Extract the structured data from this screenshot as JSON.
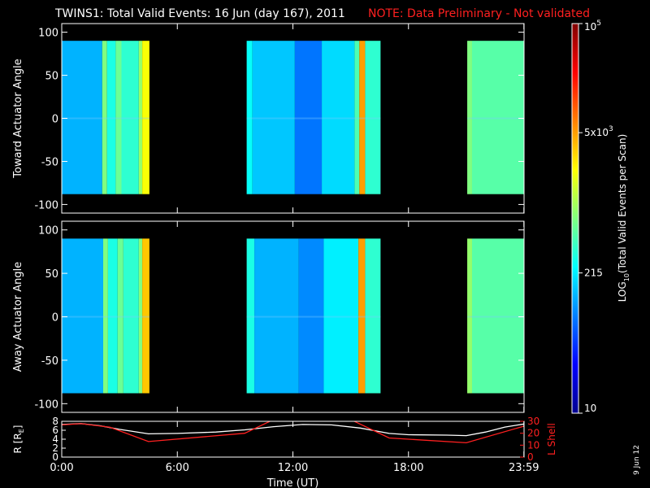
{
  "title": {
    "main": "TWINS1: Total Valid Events: 16 Jun (day 167), 2011",
    "note": "NOTE: Data Preliminary - Not validated",
    "note_color": "#ff2020"
  },
  "stamp": "9 Jun 12",
  "chart_data": [
    {
      "type": "heatmap",
      "ylabel": "Toward Actuator Angle",
      "ylim": [
        -110,
        110
      ],
      "yticks": [
        "100",
        "50",
        "0",
        "-50",
        "-100"
      ],
      "ytick_values": [
        100,
        50,
        0,
        -50,
        -100
      ],
      "angle_range": [
        -88,
        90
      ],
      "blocks": [
        {
          "t_start": 0.0,
          "t_end": 4.55,
          "stripes": [
            {
              "t": 0.0,
              "w": 2.1,
              "level": 0.3
            },
            {
              "t": 2.1,
              "w": 0.25,
              "level": 0.5
            },
            {
              "t": 2.35,
              "w": 0.45,
              "level": 0.4
            },
            {
              "t": 2.8,
              "w": 0.3,
              "level": 0.48
            },
            {
              "t": 3.1,
              "w": 0.9,
              "level": 0.42
            },
            {
              "t": 4.0,
              "w": 0.18,
              "level": 0.52
            },
            {
              "t": 4.18,
              "w": 0.37,
              "level": 0.62
            }
          ]
        },
        {
          "t_start": 9.6,
          "t_end": 16.55,
          "stripes": [
            {
              "t": 9.6,
              "w": 0.3,
              "level": 0.38
            },
            {
              "t": 9.9,
              "w": 2.2,
              "level": 0.32
            },
            {
              "t": 12.1,
              "w": 1.4,
              "level": 0.24
            },
            {
              "t": 13.5,
              "w": 1.7,
              "level": 0.34
            },
            {
              "t": 15.2,
              "w": 0.25,
              "level": 0.45
            },
            {
              "t": 15.45,
              "w": 0.3,
              "level": 0.72
            },
            {
              "t": 15.75,
              "w": 0.8,
              "level": 0.42
            }
          ]
        },
        {
          "t_start": 21.05,
          "t_end": 23.99,
          "stripes": [
            {
              "t": 21.05,
              "w": 0.25,
              "level": 0.5
            },
            {
              "t": 21.3,
              "w": 2.69,
              "level": 0.46
            }
          ]
        }
      ]
    },
    {
      "type": "heatmap",
      "ylabel": "Away Actuator Angle",
      "ylim": [
        -110,
        110
      ],
      "yticks": [
        "100",
        "50",
        "0",
        "-50",
        "-100"
      ],
      "ytick_values": [
        100,
        50,
        0,
        -50,
        -100
      ],
      "angle_range": [
        -88,
        90
      ],
      "blocks": [
        {
          "t_start": 0.0,
          "t_end": 4.55,
          "stripes": [
            {
              "t": 0.0,
              "w": 2.15,
              "level": 0.3
            },
            {
              "t": 2.15,
              "w": 0.25,
              "level": 0.5
            },
            {
              "t": 2.4,
              "w": 0.5,
              "level": 0.4
            },
            {
              "t": 2.9,
              "w": 0.3,
              "level": 0.48
            },
            {
              "t": 3.2,
              "w": 0.8,
              "level": 0.42
            },
            {
              "t": 4.0,
              "w": 0.18,
              "level": 0.5
            },
            {
              "t": 4.18,
              "w": 0.37,
              "level": 0.68
            }
          ]
        },
        {
          "t_start": 9.6,
          "t_end": 16.55,
          "stripes": [
            {
              "t": 9.6,
              "w": 0.4,
              "level": 0.4
            },
            {
              "t": 10.0,
              "w": 2.3,
              "level": 0.3
            },
            {
              "t": 12.3,
              "w": 1.3,
              "level": 0.26
            },
            {
              "t": 13.6,
              "w": 1.8,
              "level": 0.36
            },
            {
              "t": 15.4,
              "w": 0.35,
              "level": 0.72
            },
            {
              "t": 15.75,
              "w": 0.8,
              "level": 0.42
            }
          ]
        },
        {
          "t_start": 21.05,
          "t_end": 23.99,
          "stripes": [
            {
              "t": 21.05,
              "w": 0.25,
              "level": 0.52
            },
            {
              "t": 21.3,
              "w": 2.69,
              "level": 0.46
            }
          ]
        }
      ]
    },
    {
      "type": "line",
      "ylabel": "R [R",
      "ylabel_sub": "E",
      "ylabel_end": "]",
      "ylim": [
        0,
        8
      ],
      "yticks": [
        "8",
        "6",
        "4",
        "2",
        "0"
      ],
      "ytick_values": [
        8,
        6,
        4,
        2,
        0
      ],
      "right_ylabel": "L Shell",
      "right_ylim": [
        0,
        30
      ],
      "right_yticks": [
        "30",
        "20",
        "10",
        "0"
      ],
      "right_ytick_values": [
        30,
        20,
        10,
        0
      ],
      "right_color": "#ff2020",
      "xlabel": "Time (UT)",
      "xticks": [
        "0:00",
        "6:00",
        "12:00",
        "18:00",
        "23:59"
      ],
      "xtick_values": [
        0,
        6,
        12,
        18,
        23.99
      ],
      "xlim": [
        0,
        24
      ],
      "series": [
        {
          "axis": "left",
          "color": "#ffffff",
          "x": [
            0,
            1,
            2,
            3,
            4.5,
            6,
            8,
            9.5,
            11,
            12.5,
            14,
            15.5,
            17,
            18,
            20,
            21,
            22,
            23,
            24
          ],
          "y": [
            7.3,
            7.5,
            7.0,
            6.2,
            5.2,
            5.3,
            5.6,
            6.1,
            6.8,
            7.3,
            7.2,
            6.5,
            5.3,
            5.0,
            4.9,
            4.8,
            5.6,
            6.7,
            7.4
          ]
        },
        {
          "axis": "right",
          "color": "#ff2020",
          "x": [
            0,
            1,
            2.5,
            4.5,
            9.5,
            11.2
          ],
          "y": [
            27,
            28,
            25,
            13,
            20,
            33
          ]
        },
        {
          "axis": "right",
          "color": "#ff2020",
          "x": [
            14.8,
            17,
            21,
            24
          ],
          "y": [
            33,
            16,
            12,
            26
          ]
        }
      ]
    }
  ],
  "colorbar": {
    "label_pre": "LOG",
    "label_sub": "10",
    "label_post": "(Total Valid Events per Scan)",
    "ticks": [
      {
        "base": "10",
        "sup": "5",
        "level": 1.0
      },
      {
        "base": "5x10",
        "sup": "3",
        "level": 0.72
      },
      {
        "base": "215",
        "sup": "",
        "level": 0.36
      },
      {
        "base": "10",
        "sup": "",
        "level": 0.0
      }
    ]
  }
}
